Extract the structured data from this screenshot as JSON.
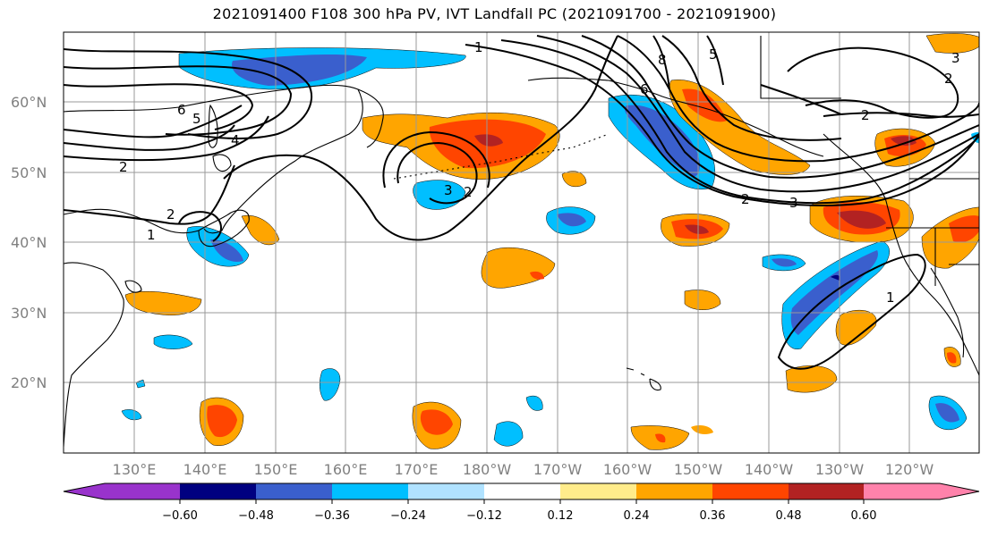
{
  "title": "2021091400 F108 300 hPa PV, IVT Landfall PC (2021091700 - 2021091900)",
  "lat_labels": [
    "60°N",
    "50°N",
    "40°N",
    "30°N",
    "20°N"
  ],
  "lon_labels": [
    "130°E",
    "140°E",
    "150°E",
    "160°E",
    "170°E",
    "180°W",
    "170°W",
    "160°W",
    "150°W",
    "140°W",
    "130°W",
    "120°W"
  ],
  "colorbar": {
    "colors": [
      "#9933cc",
      "#000080",
      "#3a5fcd",
      "#00bfff",
      "#b0e2ff",
      "#ffffff",
      "#ffec8b",
      "#ffa500",
      "#ff4500",
      "#b22222",
      "#ff82ab"
    ],
    "tick_labels": [
      "−0.60",
      "−0.48",
      "−0.36",
      "−0.24",
      "−0.12",
      "0.12",
      "0.24",
      "0.36",
      "0.48",
      "0.60"
    ]
  },
  "contour_labels": [
    "1",
    "2",
    "3",
    "4",
    "5",
    "6",
    "8"
  ]
}
